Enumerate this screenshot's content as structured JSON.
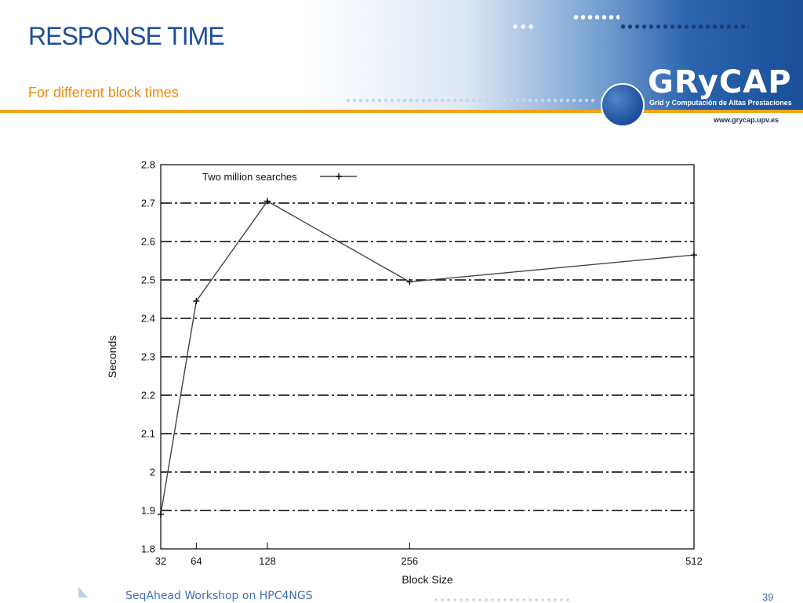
{
  "slide": {
    "title": "RESPONSE TIME",
    "subtitle": "For different block times",
    "footer": "SeqAhead Workshop on HPC4NGS",
    "page_number": "39"
  },
  "logo": {
    "word": "GRyCAP",
    "tagline": "Grid y Computación de Altas Prestaciones",
    "url": "www.grycap.upv.es"
  },
  "colors": {
    "title": "#1d4e9a",
    "subtitle": "#ee8a10",
    "rule": "#f3a21b",
    "series": "#444444"
  },
  "chart_data": {
    "type": "line",
    "xlabel": "Block Size",
    "ylabel": "Seconds",
    "x": [
      32,
      64,
      128,
      256,
      512
    ],
    "x_ticks": [
      "32",
      "64",
      "128",
      "256",
      "512"
    ],
    "xlim": [
      32,
      512
    ],
    "ylim": [
      1.8,
      2.8
    ],
    "y_ticks": [
      "1.8",
      "1.9",
      "2",
      "2.1",
      "2.2",
      "2.3",
      "2.4",
      "2.5",
      "2.6",
      "2.7",
      "2.8"
    ],
    "grid": "horizontal dashed",
    "legend": "top-left",
    "series": [
      {
        "name": "Two million searches",
        "values": [
          1.89,
          2.445,
          2.705,
          2.495,
          2.565
        ]
      }
    ]
  }
}
